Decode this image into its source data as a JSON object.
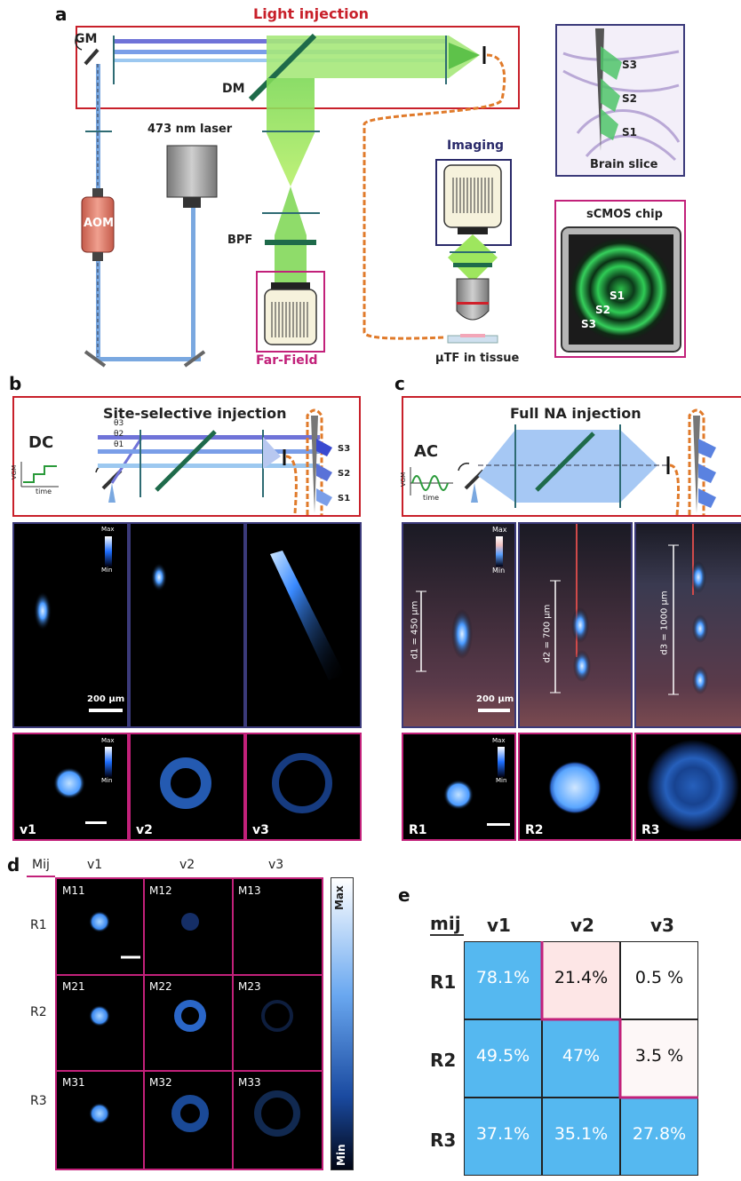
{
  "panels": {
    "a": "a",
    "b": "b",
    "c": "c",
    "d": "d",
    "e": "e"
  },
  "panel_a": {
    "light_injection": "Light injection",
    "gm": "GM",
    "dm": "DM",
    "laser": "473 nm laser",
    "aom": "AOM",
    "bpf": "BPF",
    "far_field": "Far-Field",
    "imaging": "Imaging",
    "utf": "µTF in tissue",
    "brain_slice": "Brain slice",
    "sites": [
      "S3",
      "S2",
      "S1"
    ],
    "scmos": "sCMOS chip"
  },
  "panel_b": {
    "title": "Site-selective injection",
    "mode": "DC",
    "vgm": "VGM",
    "time": "time",
    "thetas": [
      "θ3",
      "θ2",
      "θ1"
    ],
    "sites": [
      "S3",
      "S2",
      "S1"
    ],
    "colorbar_max": "Max",
    "colorbar_min": "Min",
    "scalebar": "200 µm",
    "farfield_labels": [
      "v1",
      "v2",
      "v3"
    ]
  },
  "panel_c": {
    "title": "Full NA injection",
    "mode": "AC",
    "vgm": "VGM",
    "time": "time",
    "depths": [
      "d1 = 450 µm",
      "d2 = 700 µm",
      "d3 = 1000 µm"
    ],
    "colorbar_max": "Max",
    "colorbar_min": "Min",
    "scalebar": "200 µm",
    "farfield_labels": [
      "R1",
      "R2",
      "R3"
    ]
  },
  "panel_d": {
    "corner": "Mij",
    "cols": [
      "v1",
      "v2",
      "v3"
    ],
    "rows": [
      "R1",
      "R2",
      "R3"
    ],
    "cells": [
      [
        "M11",
        "M12",
        "M13"
      ],
      [
        "M21",
        "M22",
        "M23"
      ],
      [
        "M31",
        "M32",
        "M33"
      ]
    ],
    "colorbar_max": "Max",
    "colorbar_min": "Min"
  },
  "panel_e": {
    "corner": "mij",
    "cols": [
      "v1",
      "v2",
      "v3"
    ],
    "rows": [
      "R1",
      "R2",
      "R3"
    ],
    "values": [
      [
        "78.1%",
        "21.4%",
        "0.5 %"
      ],
      [
        "49.5%",
        "47%",
        "3.5 %"
      ],
      [
        "37.1%",
        "35.1%",
        "27.8%"
      ]
    ]
  },
  "colors": {
    "red_frame": "#c8202a",
    "navy_frame": "#3b3a7a",
    "magenta_frame": "#c2217a",
    "blue_cell": "#55b8f0",
    "pink_cell": "#fde6e6",
    "white_cell": "#fdf7f7"
  }
}
